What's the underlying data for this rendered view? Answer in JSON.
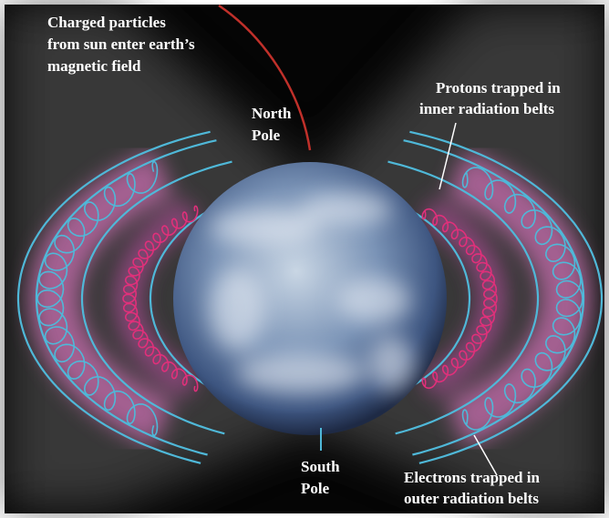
{
  "labels": [
    {
      "lines": [
        "Charged particles",
        "from sun enter earth’s",
        "magnetic field"
      ]
    },
    {
      "lines": [
        "North",
        "Pole"
      ]
    },
    {
      "lines": [
        "Protons trapped in",
        "inner radiation belts"
      ]
    },
    {
      "lines": [
        "South",
        "Pole"
      ]
    },
    {
      "lines": [
        "Electrons trapped in",
        "outer radiation belts"
      ]
    }
  ]
}
